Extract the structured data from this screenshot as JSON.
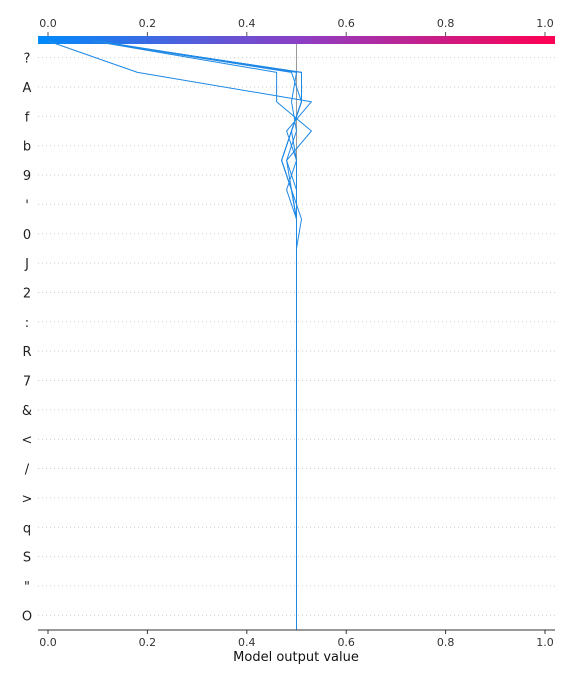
{
  "chart_data": {
    "type": "line",
    "subtype": "decision-plot",
    "title": "",
    "xlabel": "Model output value",
    "ylabel": "",
    "xlim": [
      -0.02,
      1.02
    ],
    "x_ticks": [
      "0.0",
      "0.2",
      "0.4",
      "0.6",
      "0.8",
      "1.0"
    ],
    "x_tick_values": [
      0.0,
      0.2,
      0.4,
      0.6,
      0.8,
      1.0
    ],
    "base_value": 0.5,
    "grid": "horizontal-dotted",
    "colorbar": {
      "placement": "top",
      "range": [
        0.0,
        1.0
      ],
      "colors": [
        "#008bfb",
        "#ff0052"
      ]
    },
    "features": [
      "O",
      "\"",
      "S",
      "q",
      ">",
      "/",
      "<",
      "&",
      "7",
      "R",
      ":",
      "2",
      "J",
      "0",
      "'",
      "9",
      "b",
      "f",
      "A",
      "?"
    ],
    "series": [
      {
        "color": "#1e88e5",
        "values": [
          0.5,
          0.5,
          0.5,
          0.5,
          0.5,
          0.5,
          0.5,
          0.5,
          0.5,
          0.5,
          0.5,
          0.5,
          0.5,
          0.5,
          0.5,
          0.49,
          0.47,
          0.49,
          0.51,
          0.51,
          0.09
        ]
      },
      {
        "color": "#1e88e5",
        "values": [
          0.5,
          0.5,
          0.5,
          0.5,
          0.5,
          0.5,
          0.5,
          0.5,
          0.5,
          0.5,
          0.5,
          0.5,
          0.5,
          0.5,
          0.5,
          0.49,
          0.47,
          0.49,
          0.51,
          0.51,
          0.09
        ]
      },
      {
        "color": "#1e88e5",
        "values": [
          0.5,
          0.5,
          0.5,
          0.5,
          0.5,
          0.5,
          0.5,
          0.5,
          0.5,
          0.5,
          0.5,
          0.5,
          0.5,
          0.5,
          0.5,
          0.49,
          0.47,
          0.49,
          0.51,
          0.51,
          0.09
        ]
      },
      {
        "color": "#1e88e5",
        "values": [
          0.5,
          0.5,
          0.5,
          0.5,
          0.5,
          0.5,
          0.5,
          0.5,
          0.5,
          0.5,
          0.5,
          0.5,
          0.5,
          0.5,
          0.5,
          0.48,
          0.5,
          0.49,
          0.51,
          0.49,
          0.09
        ]
      },
      {
        "color": "#1e88e5",
        "values": [
          0.5,
          0.5,
          0.5,
          0.5,
          0.5,
          0.5,
          0.5,
          0.5,
          0.5,
          0.5,
          0.5,
          0.5,
          0.5,
          0.5,
          0.51,
          0.49,
          0.48,
          0.5,
          0.49,
          0.5,
          0.1
        ]
      },
      {
        "color": "#1e88e5",
        "values": [
          0.5,
          0.5,
          0.5,
          0.5,
          0.5,
          0.5,
          0.5,
          0.5,
          0.5,
          0.5,
          0.5,
          0.5,
          0.5,
          0.5,
          0.5,
          0.5,
          0.48,
          0.53,
          0.46,
          0.46,
          0.09
        ]
      },
      {
        "color": "#1e88e5",
        "values": [
          0.5,
          0.5,
          0.5,
          0.5,
          0.5,
          0.5,
          0.5,
          0.5,
          0.5,
          0.5,
          0.5,
          0.5,
          0.5,
          0.5,
          0.5,
          0.5,
          0.5,
          0.48,
          0.53,
          0.18,
          0.0
        ]
      }
    ]
  }
}
